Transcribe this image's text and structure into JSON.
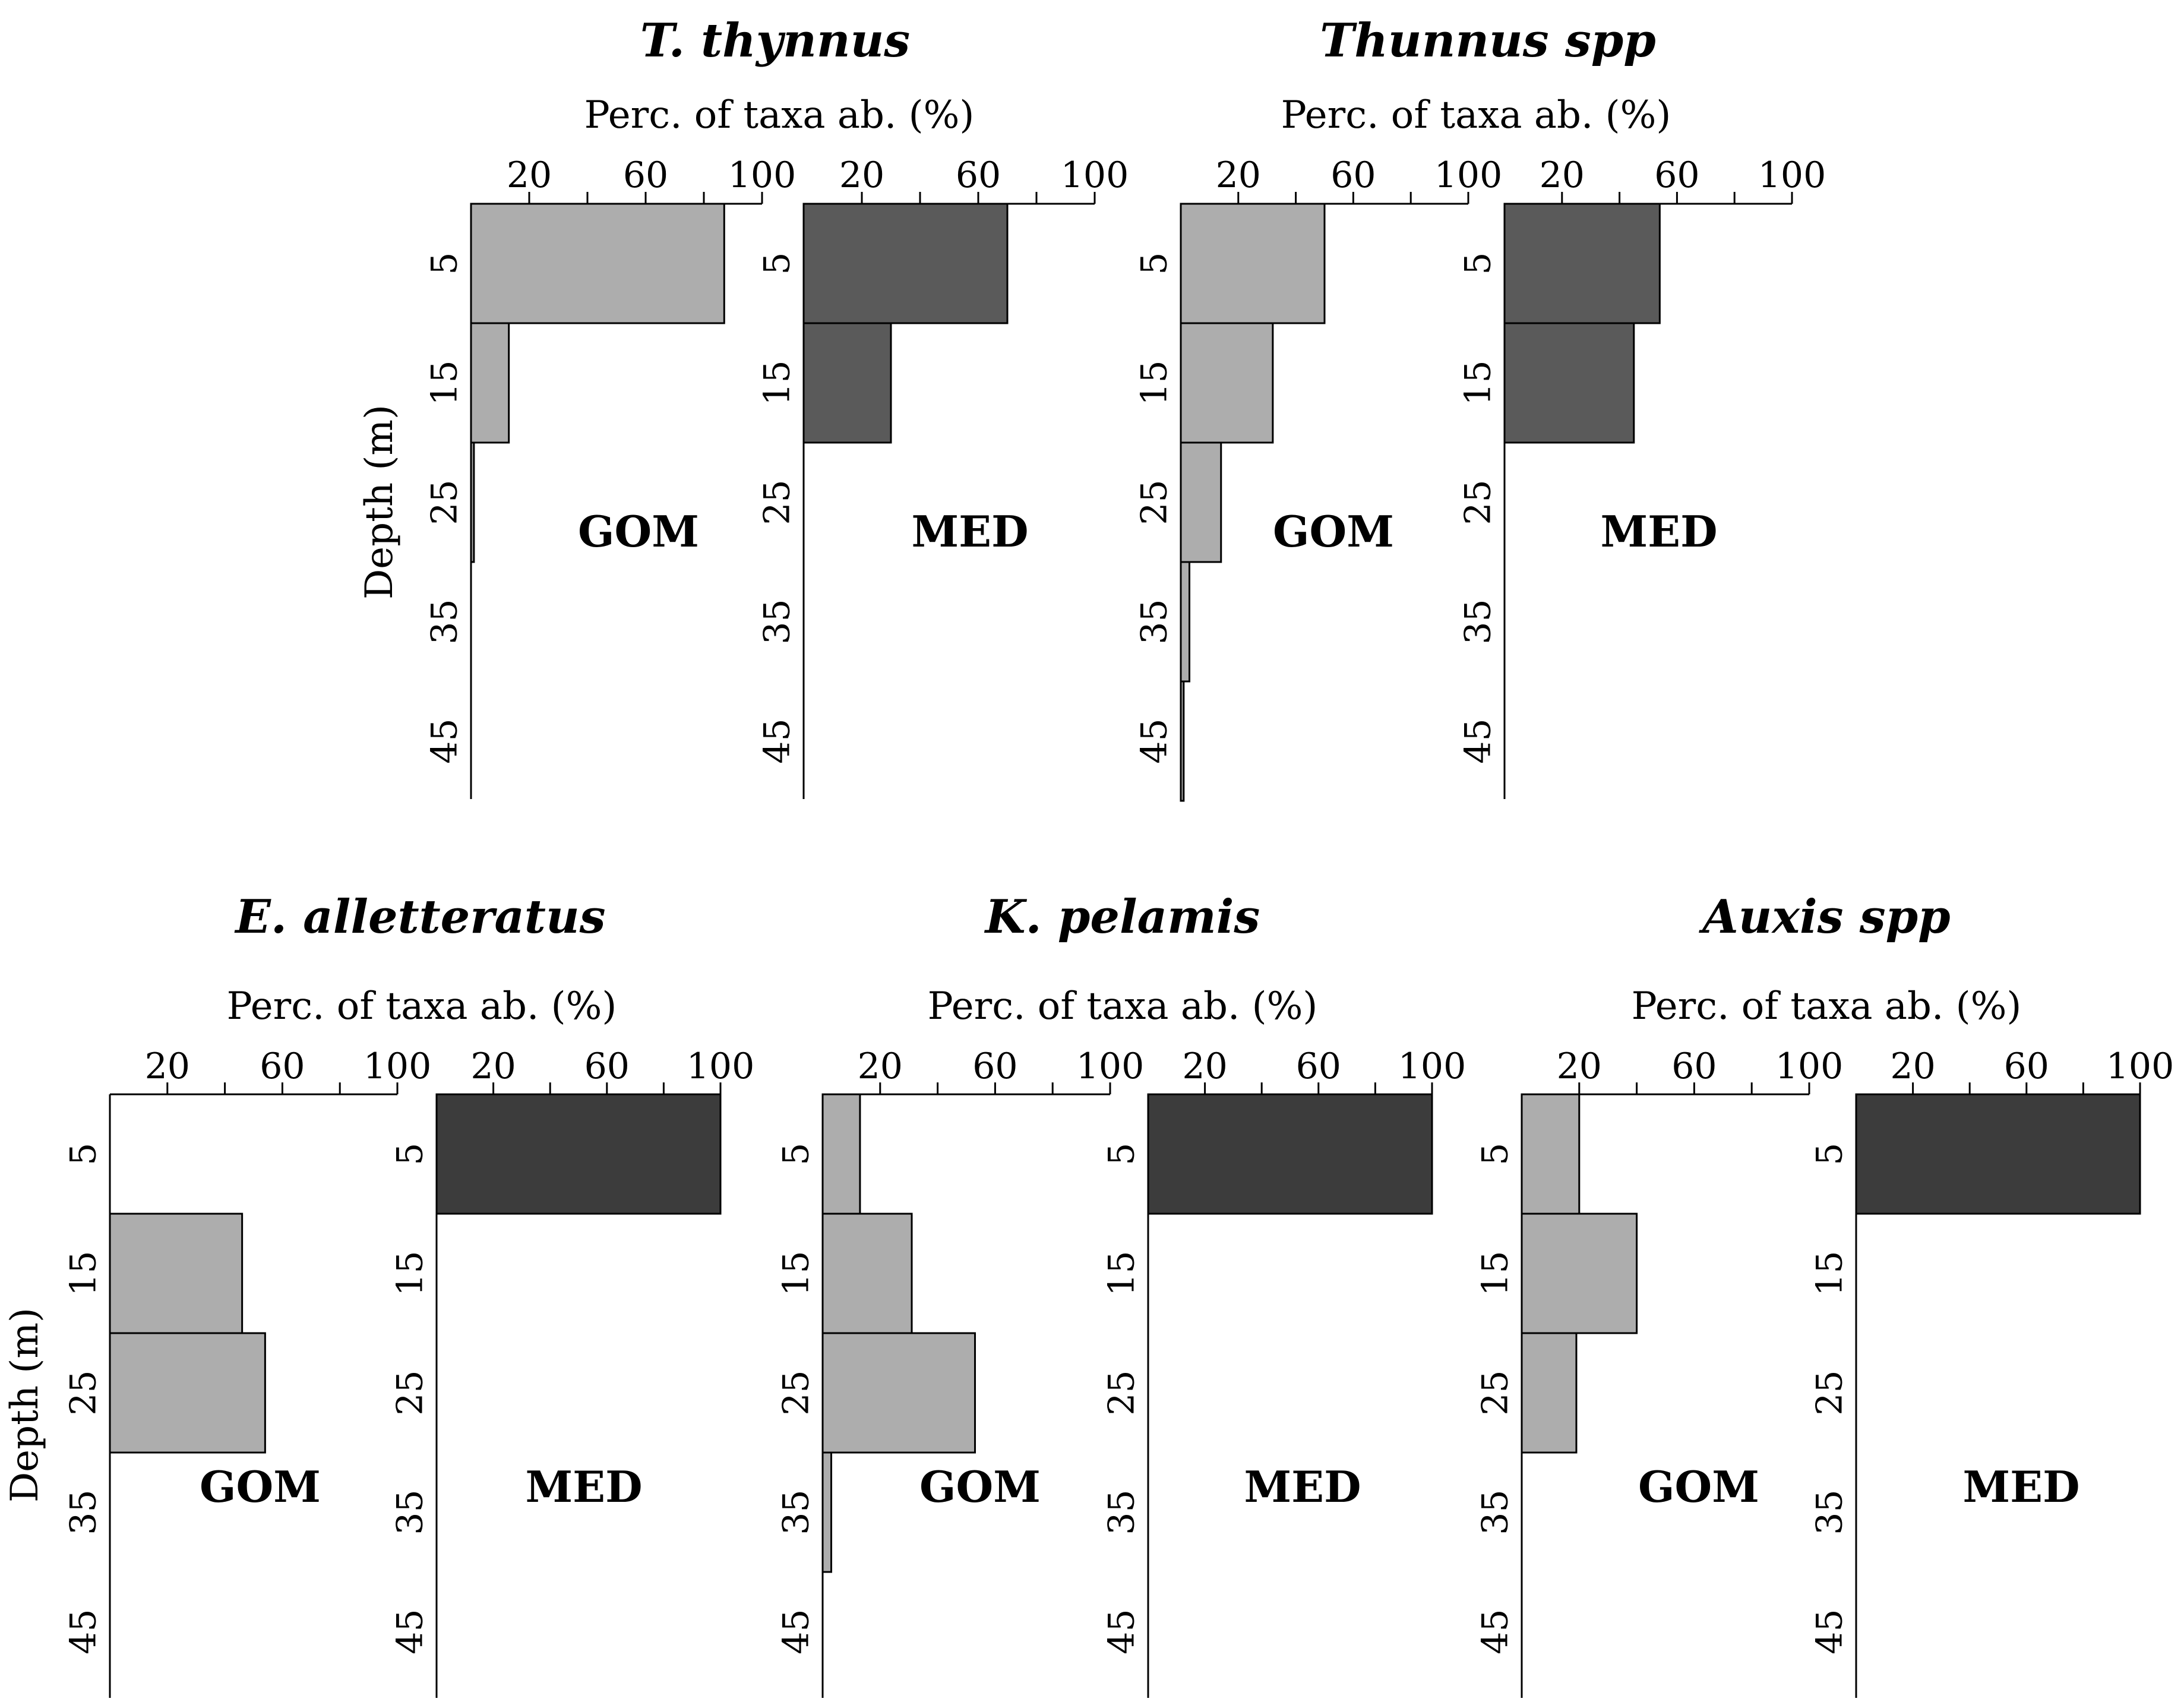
{
  "chart_data": {
    "type": "bar",
    "orientation": "horizontal",
    "xlabel": "Perc. of taxa ab. (%)",
    "ylabel": "Depth (m)",
    "xlim": [
      0,
      100
    ],
    "x_ticks": [
      20,
      60,
      100
    ],
    "depth_bins": [
      "0-10",
      "10-20",
      "20-30",
      "30-40",
      "40-50"
    ],
    "y_tick_labels": [
      "5",
      "15",
      "25",
      "35",
      "45"
    ],
    "colors": {
      "GOM": "#adadad",
      "MED_top": "#5a5a5a",
      "MED_bottom": "#3c3c3c"
    },
    "panels": [
      {
        "title": "T. thynnus",
        "series": [
          {
            "name": "GOM",
            "values": [
              87,
              13,
              1,
              0,
              0
            ]
          },
          {
            "name": "MED",
            "values": [
              70,
              30,
              0,
              0,
              0
            ]
          }
        ]
      },
      {
        "title": "Thunnus spp",
        "series": [
          {
            "name": "GOM",
            "values": [
              50,
              32,
              14,
              3,
              1
            ]
          },
          {
            "name": "MED",
            "values": [
              54,
              45,
              0,
              0,
              0
            ]
          }
        ]
      },
      {
        "title": "E. alletteratus",
        "series": [
          {
            "name": "GOM",
            "values": [
              0,
              46,
              54,
              0,
              0
            ]
          },
          {
            "name": "MED",
            "values": [
              100,
              0,
              0,
              0,
              0
            ]
          }
        ]
      },
      {
        "title": "K. pelamis",
        "series": [
          {
            "name": "GOM",
            "values": [
              13,
              31,
              53,
              3,
              0
            ]
          },
          {
            "name": "MED",
            "values": [
              100,
              0,
              0,
              0,
              0
            ]
          }
        ]
      },
      {
        "title": "Auxis spp",
        "series": [
          {
            "name": "GOM",
            "values": [
              20,
              40,
              19,
              0,
              0
            ]
          },
          {
            "name": "MED",
            "values": [
              100,
              0,
              0,
              0,
              0
            ]
          }
        ]
      }
    ]
  }
}
